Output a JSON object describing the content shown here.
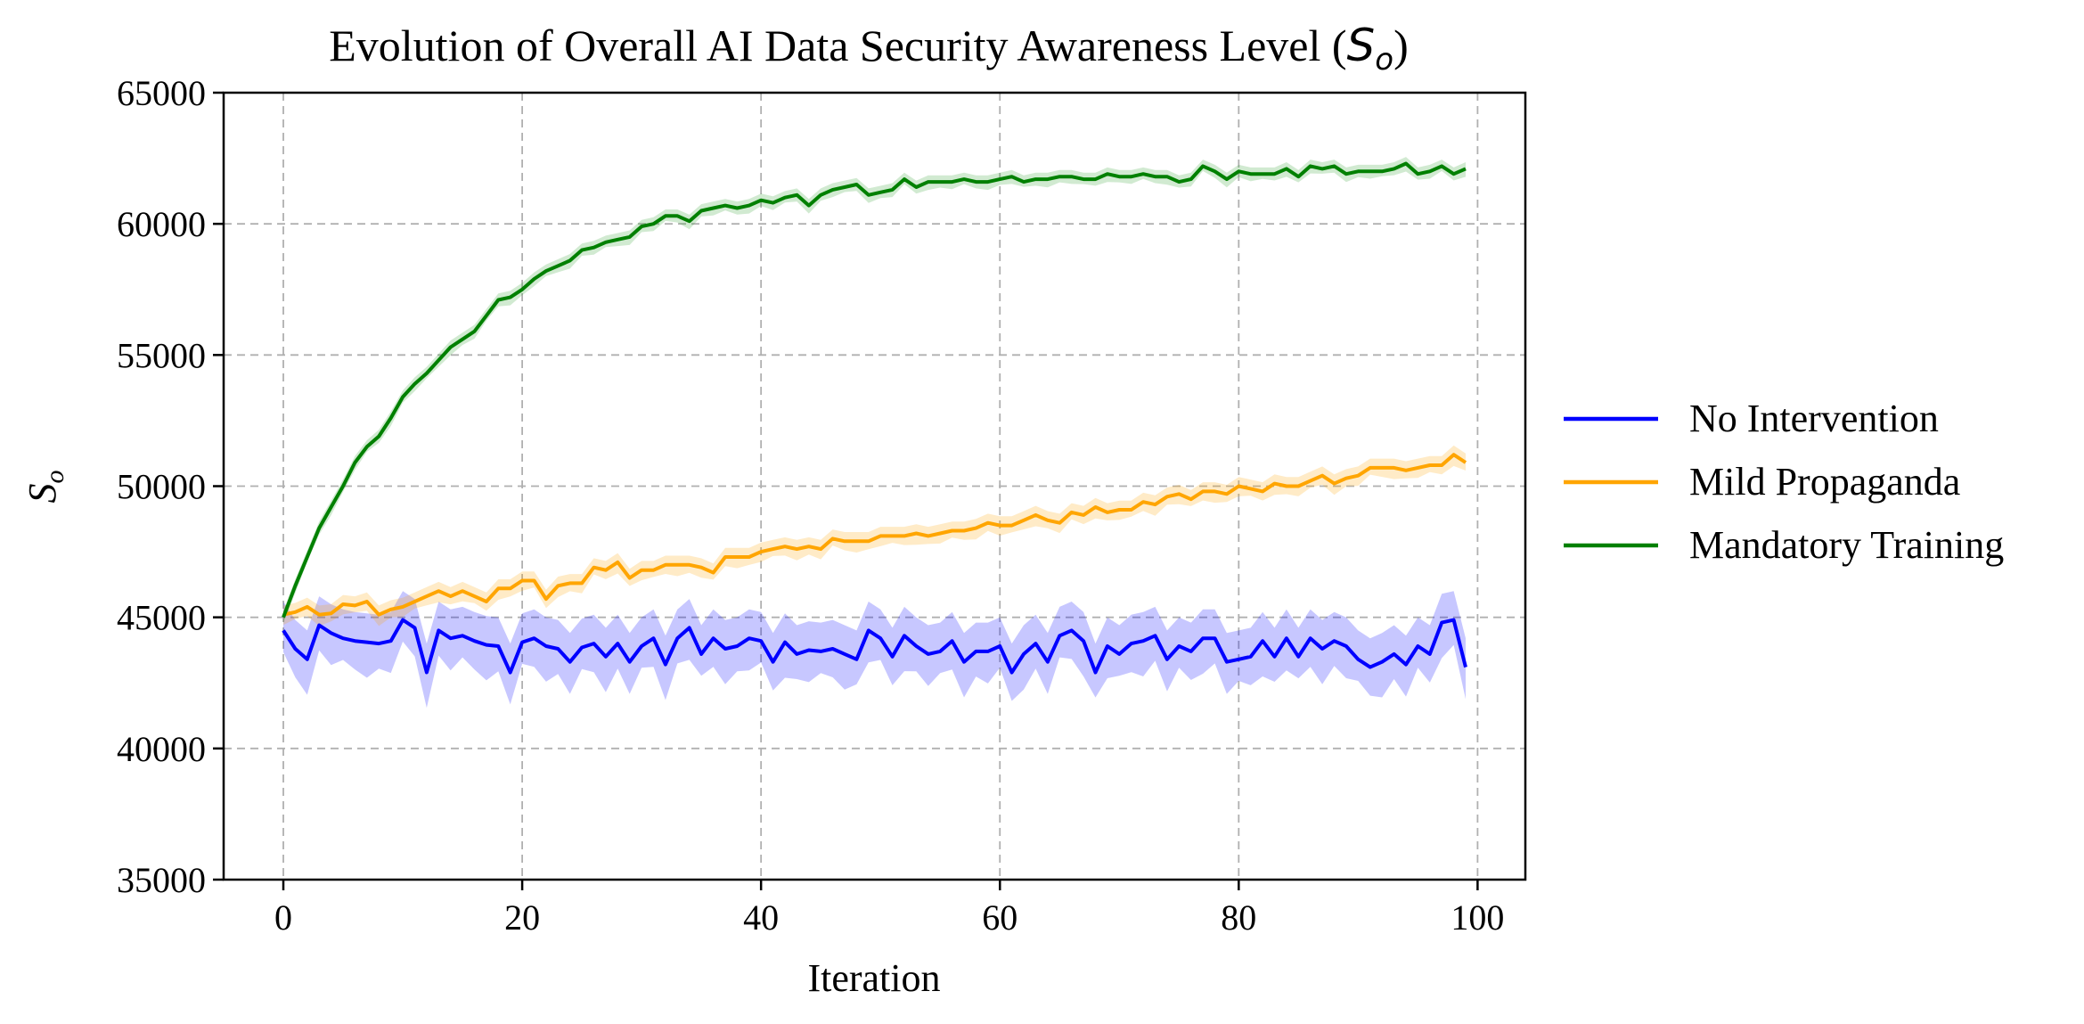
{
  "chart_data": {
    "type": "line",
    "title": "Evolution of Overall AI Data Security Awareness Level (",
    "title_symbol": "S",
    "title_subscript": "o",
    "title_close": ")",
    "xlabel": "Iteration",
    "ylabel_symbol": "S",
    "ylabel_subscript": "o",
    "xlim": [
      -5,
      104
    ],
    "ylim": [
      35000,
      65000
    ],
    "xticks": [
      0,
      20,
      40,
      60,
      80,
      100
    ],
    "xtick_labels": [
      "0",
      "20",
      "40",
      "60",
      "80",
      "100"
    ],
    "yticks": [
      35000,
      40000,
      45000,
      50000,
      55000,
      60000,
      65000
    ],
    "ytick_labels": [
      "35000",
      "40000",
      "45000",
      "50000",
      "55000",
      "60000",
      "65000"
    ],
    "grid": true,
    "grid_style": "dashed",
    "legend_position": "outside-right",
    "x": [
      0,
      1,
      2,
      3,
      4,
      5,
      6,
      7,
      8,
      9,
      10,
      11,
      12,
      13,
      14,
      15,
      16,
      17,
      18,
      19,
      20,
      21,
      22,
      23,
      24,
      25,
      26,
      27,
      28,
      29,
      30,
      31,
      32,
      33,
      34,
      35,
      36,
      37,
      38,
      39,
      40,
      41,
      42,
      43,
      44,
      45,
      46,
      47,
      48,
      49,
      50,
      51,
      52,
      53,
      54,
      55,
      56,
      57,
      58,
      59,
      60,
      61,
      62,
      63,
      64,
      65,
      66,
      67,
      68,
      69,
      70,
      71,
      72,
      73,
      74,
      75,
      76,
      77,
      78,
      79,
      80,
      81,
      82,
      83,
      84,
      85,
      86,
      87,
      88,
      89,
      90,
      91,
      92,
      93,
      94,
      95,
      96,
      97,
      98,
      99
    ],
    "series": [
      {
        "name": "No Intervention",
        "color": "#0000ff",
        "band_color": "#0000ff",
        "band_halfwidth": 1100,
        "values": [
          44500,
          43800,
          43400,
          44700,
          44400,
          44200,
          44100,
          44050,
          44000,
          44100,
          44900,
          44600,
          42900,
          44500,
          44200,
          44300,
          44100,
          43950,
          43900,
          42900,
          44050,
          44200,
          43900,
          43800,
          43300,
          43850,
          44000,
          43500,
          44000,
          43300,
          43900,
          44200,
          43200,
          44200,
          44600,
          43600,
          44200,
          43800,
          43900,
          44200,
          44100,
          43300,
          44050,
          43600,
          43750,
          43700,
          43800,
          43600,
          43400,
          44500,
          44200,
          43500,
          44300,
          43900,
          43600,
          43700,
          44100,
          43300,
          43700,
          43700,
          43900,
          42900,
          43600,
          44000,
          43300,
          44300,
          44500,
          44100,
          42900,
          43900,
          43600,
          44000,
          44100,
          44300,
          43400,
          43900,
          43700,
          44200,
          44200,
          43300,
          43400,
          43500,
          44100,
          43500,
          44200,
          43500,
          44200,
          43800,
          44100,
          43900,
          43400,
          43100,
          43300,
          43600,
          43200,
          43900,
          43600,
          44800,
          44900,
          43100
        ]
      },
      {
        "name": "Mild Propaganda",
        "color": "#ffa500",
        "band_color": "#ffa500",
        "band_halfwidth": 350,
        "values": [
          45100,
          45200,
          45400,
          45100,
          45150,
          45500,
          45450,
          45600,
          45100,
          45300,
          45400,
          45600,
          45800,
          46000,
          45800,
          46000,
          45800,
          45600,
          46100,
          46100,
          46400,
          46400,
          45700,
          46200,
          46300,
          46300,
          46900,
          46800,
          47100,
          46500,
          46800,
          46800,
          47000,
          47000,
          47000,
          46900,
          46700,
          47300,
          47300,
          47300,
          47500,
          47600,
          47700,
          47600,
          47700,
          47600,
          48000,
          47900,
          47900,
          47900,
          48100,
          48100,
          48100,
          48200,
          48100,
          48200,
          48300,
          48300,
          48400,
          48600,
          48500,
          48500,
          48700,
          48900,
          48700,
          48600,
          49000,
          48900,
          49200,
          49000,
          49100,
          49100,
          49400,
          49300,
          49600,
          49700,
          49500,
          49800,
          49800,
          49700,
          50000,
          49900,
          49800,
          50100,
          50000,
          50000,
          50200,
          50400,
          50100,
          50300,
          50400,
          50700,
          50700,
          50700,
          50600,
          50700,
          50800,
          50800,
          51200,
          50900
        ]
      },
      {
        "name": "Mandatory Training",
        "color": "#008000",
        "band_color": "#2ca02c",
        "band_halfwidth": 250,
        "values": [
          45000,
          46200,
          47300,
          48400,
          49200,
          50000,
          50900,
          51500,
          51900,
          52600,
          53400,
          53900,
          54300,
          54800,
          55300,
          55600,
          55900,
          56500,
          57100,
          57200,
          57500,
          57900,
          58200,
          58400,
          58600,
          59000,
          59100,
          59300,
          59400,
          59500,
          59900,
          60000,
          60300,
          60300,
          60100,
          60500,
          60600,
          60700,
          60600,
          60700,
          60900,
          60800,
          61000,
          61100,
          60700,
          61100,
          61300,
          61400,
          61500,
          61100,
          61200,
          61300,
          61700,
          61400,
          61600,
          61600,
          61600,
          61700,
          61600,
          61600,
          61700,
          61800,
          61600,
          61700,
          61700,
          61800,
          61800,
          61700,
          61700,
          61900,
          61800,
          61800,
          61900,
          61800,
          61800,
          61600,
          61700,
          62200,
          62000,
          61700,
          62000,
          61900,
          61900,
          61900,
          62100,
          61800,
          62200,
          62100,
          62200,
          61900,
          62000,
          62000,
          62000,
          62100,
          62300,
          61900,
          62000,
          62200,
          61900,
          62100
        ]
      }
    ]
  }
}
